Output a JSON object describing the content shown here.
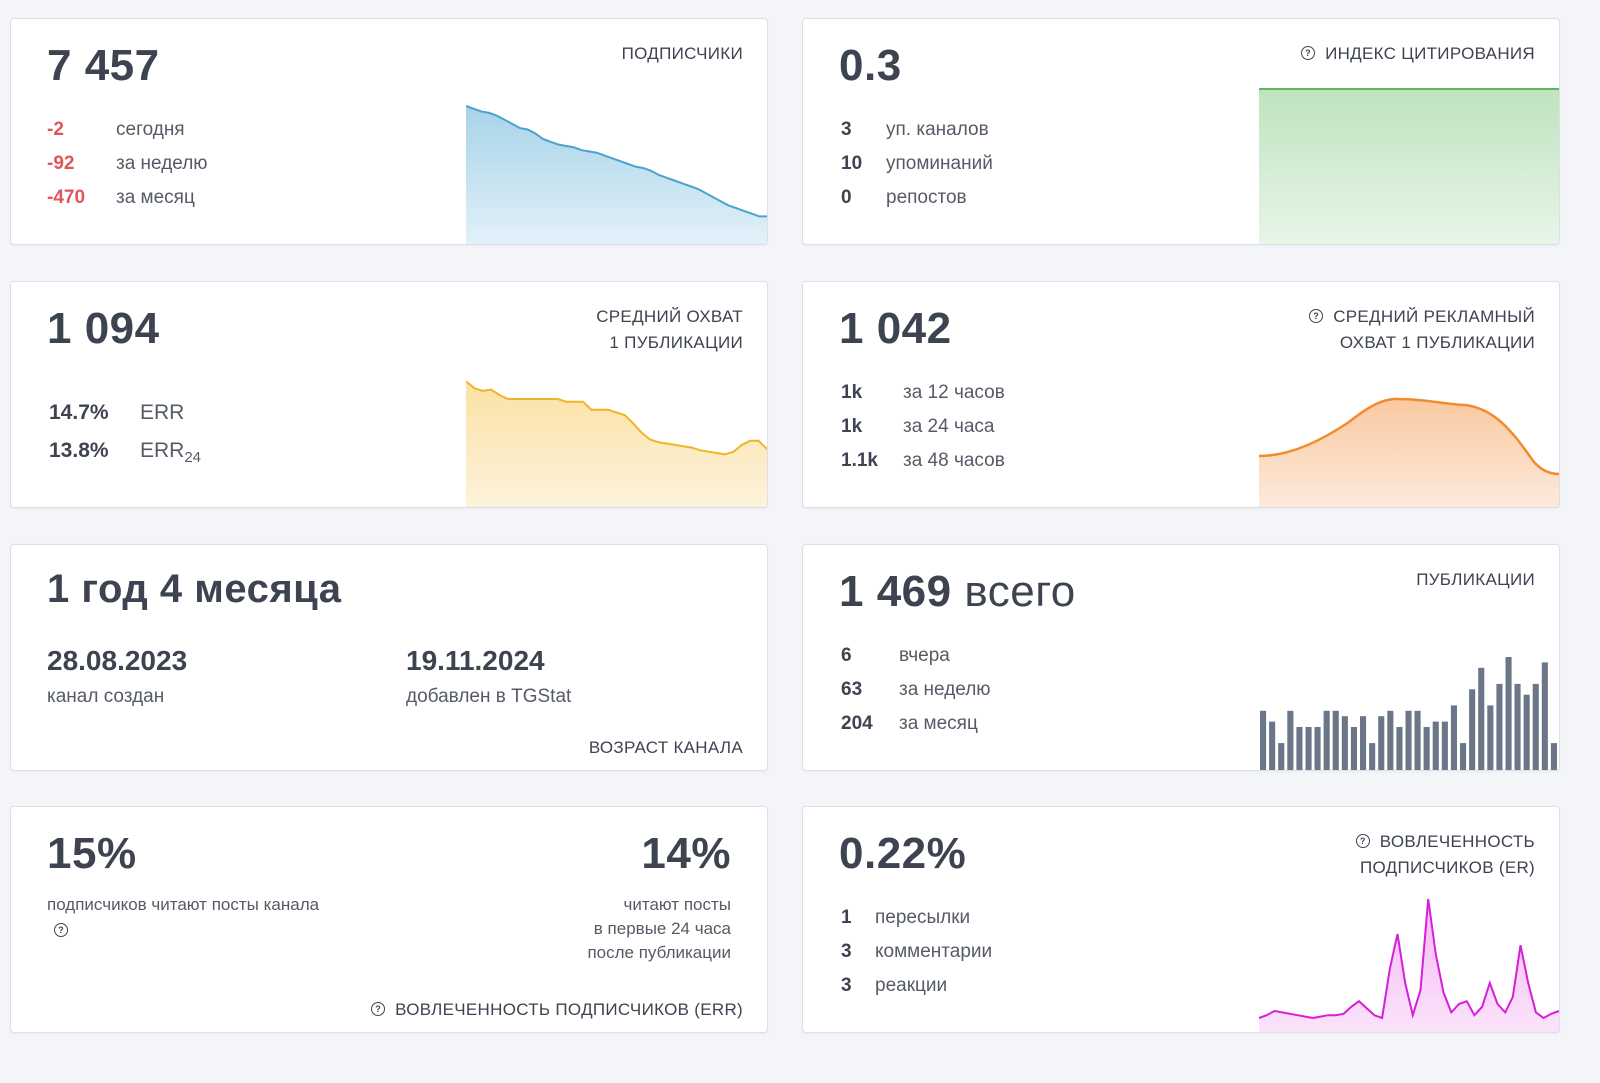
{
  "subscribers": {
    "value": "7 457",
    "title": "ПОДПИСЧИКИ",
    "rows": [
      {
        "n": "-2",
        "l": "сегодня"
      },
      {
        "n": "-92",
        "l": "за неделю"
      },
      {
        "n": "-470",
        "l": "за месяц"
      }
    ],
    "trend": [
      1.0,
      0.98,
      0.96,
      0.95,
      0.93,
      0.9,
      0.87,
      0.84,
      0.83,
      0.8,
      0.76,
      0.74,
      0.72,
      0.71,
      0.7,
      0.68,
      0.67,
      0.66,
      0.64,
      0.62,
      0.6,
      0.58,
      0.56,
      0.55,
      0.53,
      0.5,
      0.48,
      0.46,
      0.44,
      0.42,
      0.4,
      0.37,
      0.34,
      0.31,
      0.28,
      0.26,
      0.24,
      0.22,
      0.2,
      0.2
    ]
  },
  "citation": {
    "value": "0.3",
    "title": "ИНДЕКС ЦИТИРОВАНИЯ",
    "rows": [
      {
        "n": "3",
        "l": "уп. каналов"
      },
      {
        "n": "10",
        "l": "упоминаний"
      },
      {
        "n": "0",
        "l": "репостов"
      }
    ]
  },
  "avg_reach": {
    "value": "1 094",
    "title_line1": "СРЕДНИЙ ОХВАТ",
    "title_line2": "1 ПУБЛИКАЦИИ",
    "err_value": "14.7%",
    "err_label": "ERR",
    "err24_value": "13.8%",
    "err24_label": "ERR",
    "err24_sub": "24",
    "trend": [
      0.93,
      0.88,
      0.86,
      0.87,
      0.83,
      0.8,
      0.8,
      0.8,
      0.8,
      0.8,
      0.8,
      0.8,
      0.78,
      0.78,
      0.78,
      0.72,
      0.72,
      0.72,
      0.7,
      0.68,
      0.62,
      0.55,
      0.5,
      0.48,
      0.47,
      0.46,
      0.45,
      0.44,
      0.42,
      0.41,
      0.4,
      0.39,
      0.41,
      0.46,
      0.49,
      0.49,
      0.43
    ]
  },
  "ad_reach": {
    "value": "1 042",
    "title_line1": "СРЕДНИЙ РЕКЛАМНЫЙ",
    "title_line2": "ОХВАТ 1 ПУБЛИКАЦИИ",
    "rows": [
      {
        "n": "1k",
        "l": "за 12 часов"
      },
      {
        "n": "1k",
        "l": "за 24 часа"
      },
      {
        "n": "1.1k",
        "l": "за 48 часов"
      }
    ]
  },
  "age": {
    "value": "1 год 4 месяца",
    "created_date": "28.08.2023",
    "created_label": "канал создан",
    "added_date": "19.11.2024",
    "added_label": "добавлен в TGStat",
    "title": "ВОЗРАСТ КАНАЛА"
  },
  "publications": {
    "value": "1 469",
    "value_suffix": "всего",
    "title": "ПУБЛИКАЦИИ",
    "rows": [
      {
        "n": "6",
        "l": "вчера"
      },
      {
        "n": "63",
        "l": "за неделю"
      },
      {
        "n": "204",
        "l": "за месяц"
      }
    ],
    "bars": [
      11,
      9,
      5,
      11,
      8,
      8,
      8,
      11,
      11,
      10,
      8,
      10,
      5,
      10,
      11,
      8,
      11,
      11,
      8,
      9,
      9,
      12,
      5,
      15,
      19,
      12,
      16,
      21,
      16,
      14,
      16,
      20,
      5
    ]
  },
  "err": {
    "left_value": "15%",
    "left_label": "подписчиков читают посты канала",
    "right_value": "14%",
    "right_line1": "читают посты",
    "right_line2": "в первые 24 часа",
    "right_line3": "после публикации",
    "title": "ВОВЛЕЧЕННОСТЬ ПОДПИСЧИКОВ (ERR)"
  },
  "er": {
    "value": "0.22%",
    "title_line1": "ВОВЛЕЧЕННОСТЬ",
    "title_line2": "ПОДПИСЧИКОВ (ER)",
    "rows": [
      {
        "n": "1",
        "l": "пересылки"
      },
      {
        "n": "3",
        "l": "комментарии"
      },
      {
        "n": "3",
        "l": "реакции"
      }
    ],
    "trend": [
      0.1,
      0.12,
      0.15,
      0.14,
      0.13,
      0.12,
      0.11,
      0.1,
      0.11,
      0.12,
      0.12,
      0.13,
      0.18,
      0.22,
      0.17,
      0.12,
      0.1,
      0.45,
      0.7,
      0.35,
      0.12,
      0.3,
      0.95,
      0.55,
      0.28,
      0.14,
      0.2,
      0.22,
      0.12,
      0.18,
      0.35,
      0.2,
      0.14,
      0.25,
      0.62,
      0.35,
      0.14,
      0.1,
      0.13,
      0.15
    ]
  }
}
